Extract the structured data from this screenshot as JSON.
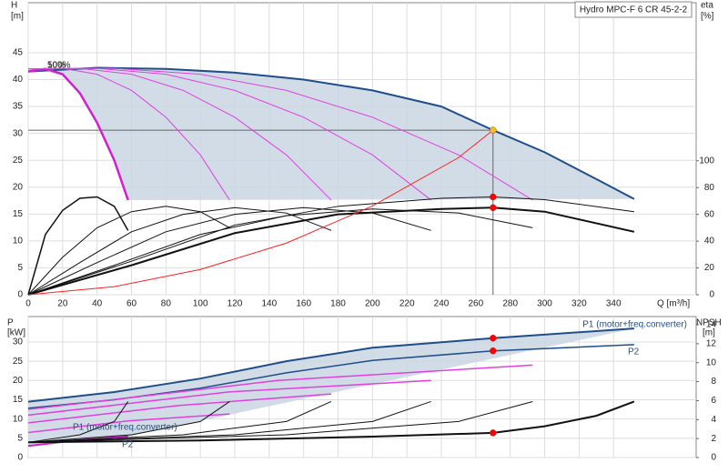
{
  "chart_data": [
    {
      "type": "line",
      "title": "Hydro MPC-F 6 CR 45-2-2",
      "y_label": "H",
      "y_unit": "[m]",
      "y2_label": "eta",
      "y2_unit": "[%]",
      "x_label": "Q [m³/h]",
      "xlim": [
        0,
        388
      ],
      "xticks": [
        0,
        20,
        40,
        60,
        80,
        100,
        120,
        140,
        160,
        180,
        200,
        220,
        240,
        260,
        280,
        300,
        320,
        340
      ],
      "ylim": [
        0,
        54.3
      ],
      "yticks": [
        0,
        5,
        10,
        15,
        20,
        25,
        30,
        35,
        40,
        45
      ],
      "y2lim": [
        0,
        218
      ],
      "y2ticks": [
        0,
        20,
        40,
        60,
        80,
        100
      ],
      "grid": true,
      "area_between": [
        0,
        1
      ],
      "area_color": "#c9d6e3",
      "series": [
        {
          "color": "#1f4e89",
          "width": 2,
          "x": [
            0,
            40,
            80,
            120,
            160,
            200,
            240,
            270,
            300,
            330,
            352
          ],
          "values": [
            41.5,
            42.2,
            42,
            41.3,
            40,
            38,
            35,
            30.6,
            26.5,
            21.5,
            17.8
          ]
        },
        {
          "color": "#d020d0",
          "width": 2.5,
          "x": [
            0,
            10,
            20,
            30,
            40,
            50,
            58
          ],
          "values": [
            41.5,
            42,
            41,
            37.5,
            32,
            25,
            17.6
          ]
        },
        {
          "color": "#e040e0",
          "width": 1,
          "x": [
            0,
            20,
            40,
            60,
            80,
            100,
            117
          ],
          "values": [
            42,
            42.1,
            41,
            38,
            33,
            26,
            17.6
          ]
        },
        {
          "color": "#e040e0",
          "width": 1,
          "x": [
            0,
            30,
            60,
            90,
            120,
            150,
            176
          ],
          "values": [
            42,
            42.1,
            41,
            38,
            33,
            26,
            17.6
          ]
        },
        {
          "color": "#e040e0",
          "width": 1,
          "x": [
            0,
            40,
            80,
            120,
            160,
            200,
            234
          ],
          "values": [
            42,
            42.1,
            41,
            38,
            33,
            26,
            17.6
          ]
        },
        {
          "color": "#e040e0",
          "width": 1,
          "x": [
            0,
            50,
            100,
            150,
            200,
            250,
            293
          ],
          "values": [
            42,
            42.1,
            41,
            38,
            33,
            26,
            17.6
          ]
        },
        {
          "color": "#111111",
          "width": 1.5,
          "axis": "y2",
          "x": [
            0,
            10,
            20,
            30,
            40,
            50,
            58
          ],
          "values": [
            0,
            45,
            63,
            72,
            73,
            66,
            48
          ]
        },
        {
          "color": "#111111",
          "width": 1,
          "axis": "y2",
          "x": [
            0,
            20,
            40,
            60,
            80,
            100,
            117
          ],
          "values": [
            0,
            28,
            50,
            62,
            66,
            62,
            50
          ]
        },
        {
          "color": "#111111",
          "width": 1,
          "axis": "y2",
          "x": [
            0,
            30,
            60,
            90,
            120,
            150,
            176
          ],
          "values": [
            0,
            24,
            47,
            60,
            65,
            61,
            48
          ]
        },
        {
          "color": "#111111",
          "width": 1,
          "axis": "y2",
          "x": [
            0,
            40,
            80,
            120,
            160,
            200,
            234
          ],
          "values": [
            0,
            24,
            47,
            60,
            65,
            61,
            48
          ]
        },
        {
          "color": "#111111",
          "width": 1,
          "axis": "y2",
          "x": [
            0,
            50,
            100,
            150,
            200,
            250,
            293
          ],
          "values": [
            0,
            22,
            45,
            59,
            64,
            61,
            50
          ]
        },
        {
          "color": "#111111",
          "width": 2,
          "axis": "y2",
          "x": [
            0,
            60,
            120,
            180,
            240,
            270,
            300,
            352
          ],
          "values": [
            0,
            22,
            46,
            60,
            64,
            65,
            62,
            47
          ]
        },
        {
          "color": "#111111",
          "width": 1,
          "axis": "y2",
          "x": [
            0,
            60,
            120,
            180,
            240,
            270,
            300,
            352
          ],
          "values": [
            0,
            25,
            52,
            66,
            72,
            73,
            71,
            62
          ]
        },
        {
          "color": "#ff2020",
          "width": 1,
          "x": [
            0,
            50,
            100,
            150,
            200,
            250,
            270
          ],
          "values": [
            0,
            1.5,
            4.7,
            9.6,
            16.5,
            25.5,
            30.6
          ]
        }
      ],
      "markers": [
        {
          "x": 270,
          "y": 30.6,
          "color": "#f0c020",
          "guides": true
        },
        {
          "x": 270,
          "y": 73,
          "axis": "y2",
          "color": "#ff0000"
        },
        {
          "x": 270,
          "y": 65,
          "axis": "y2",
          "color": "#ff0000"
        }
      ],
      "annotations": [
        "50%",
        "100%"
      ]
    },
    {
      "type": "line",
      "y_label": "P",
      "y_unit": "[kW]",
      "y2_label": "NPSH",
      "y2_unit": "[m]",
      "xlim": [
        0,
        388
      ],
      "xticks": [
        0,
        20,
        40,
        60,
        80,
        100,
        120,
        140,
        160,
        180,
        200,
        220,
        240,
        260,
        280,
        300,
        320,
        340
      ],
      "ylim": [
        0,
        36.6
      ],
      "yticks": [
        0,
        5,
        10,
        15,
        20,
        25,
        30
      ],
      "y2lim": [
        0,
        14.86
      ],
      "y2ticks": [
        0,
        2,
        4,
        6,
        8,
        10,
        12,
        14
      ],
      "grid": true,
      "area_between": [
        0,
        2
      ],
      "area_color": "#c9d6e3",
      "series": [
        {
          "color": "#1f4e89",
          "width": 2,
          "x": [
            0,
            50,
            100,
            150,
            200,
            270,
            352
          ],
          "values": [
            14.5,
            17,
            20.5,
            25,
            28.5,
            31,
            33.5
          ]
        },
        {
          "color": "#1f4e89",
          "width": 1.5,
          "x": [
            0,
            50,
            100,
            150,
            200,
            270,
            352
          ],
          "values": [
            12.8,
            15,
            18,
            22,
            25.2,
            27.7,
            29.3
          ]
        },
        {
          "color": "#d020d0",
          "width": 2,
          "x": [
            0,
            29,
            58
          ],
          "values": [
            3,
            4.5,
            5.5
          ]
        },
        {
          "color": "#e040e0",
          "width": 1.5,
          "x": [
            0,
            58,
            117
          ],
          "values": [
            6.5,
            9.5,
            11.3
          ]
        },
        {
          "color": "#e040e0",
          "width": 1.5,
          "x": [
            0,
            87,
            176
          ],
          "values": [
            9,
            13.5,
            16.5
          ]
        },
        {
          "color": "#e040e0",
          "width": 1.5,
          "x": [
            0,
            116,
            234
          ],
          "values": [
            11,
            17,
            20
          ]
        },
        {
          "color": "#e040e0",
          "width": 1.5,
          "x": [
            0,
            145,
            293
          ],
          "values": [
            12.5,
            20,
            24
          ]
        },
        {
          "color": "#111111",
          "width": 2,
          "axis": "y2",
          "x": [
            0,
            100,
            200,
            270,
            300,
            330,
            352
          ],
          "values": [
            1.6,
            1.8,
            2.2,
            2.6,
            3.3,
            4.4,
            5.9
          ]
        },
        {
          "color": "#111111",
          "width": 1,
          "axis": "y2",
          "x": [
            0,
            150,
            250,
            293
          ],
          "values": [
            1.6,
            2.4,
            3.8,
            5.9
          ]
        },
        {
          "color": "#111111",
          "width": 1,
          "axis": "y2",
          "x": [
            0,
            120,
            200,
            234
          ],
          "values": [
            1.6,
            2.4,
            3.8,
            5.9
          ]
        },
        {
          "color": "#111111",
          "width": 1,
          "axis": "y2",
          "x": [
            0,
            90,
            150,
            176
          ],
          "values": [
            1.6,
            2.4,
            3.8,
            5.9
          ]
        },
        {
          "color": "#111111",
          "width": 1,
          "axis": "y2",
          "x": [
            0,
            60,
            100,
            117
          ],
          "values": [
            1.6,
            2.4,
            3.8,
            5.9
          ]
        },
        {
          "color": "#111111",
          "width": 1,
          "axis": "y2",
          "x": [
            0,
            30,
            50,
            58
          ],
          "values": [
            1.6,
            2.4,
            3.8,
            5.9
          ]
        }
      ],
      "markers": [
        {
          "x": 270,
          "y": 31,
          "color": "#ff0000"
        },
        {
          "x": 270,
          "y": 27.7,
          "color": "#ff0000"
        },
        {
          "x": 270,
          "y": 2.6,
          "axis": "y2",
          "color": "#ff0000"
        }
      ],
      "annotations": [
        "P1 (motor+freq.converter)",
        "P2",
        "P1 (motor+freq.converter)",
        "P2"
      ]
    }
  ]
}
